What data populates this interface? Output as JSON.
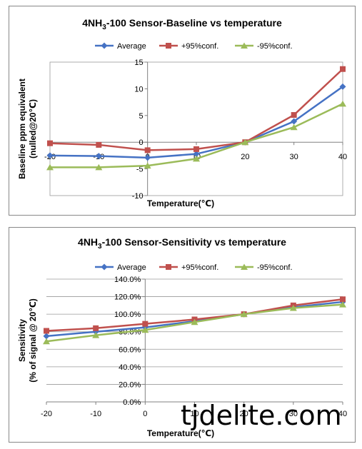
{
  "chart_data": [
    {
      "type": "line",
      "title_prefix": "4NH",
      "title_sub": "3",
      "title_suffix": "-100 Sensor-Baseline vs temperature",
      "xlabel": "Temperature(℃)",
      "ylabel_line1": "Baseline ppm equivalent",
      "ylabel_line2": "(nulled@20℃)",
      "x": [
        -20,
        -10,
        0,
        10,
        20,
        30,
        40
      ],
      "xlim": [
        -20,
        40
      ],
      "ylim": [
        -10,
        15
      ],
      "yticks": [
        -10,
        -5,
        0,
        5,
        10,
        15
      ],
      "ytick_labels": [
        "-10",
        "-5",
        "0",
        "5",
        "10",
        "15"
      ],
      "xtick_labels": [
        "-20",
        "-10",
        "0",
        "10",
        "20",
        "30",
        "40"
      ],
      "grid": false,
      "legend": "top",
      "series": [
        {
          "name": "Average",
          "color": "#4572c4",
          "marker": "diamond",
          "values": [
            -2.5,
            -2.6,
            -2.9,
            -2.2,
            0,
            3.9,
            10.4
          ]
        },
        {
          "name": "+95%conf.",
          "color": "#c0504d",
          "marker": "square",
          "values": [
            -0.2,
            -0.5,
            -1.5,
            -1.3,
            0,
            5.1,
            13.7
          ]
        },
        {
          "name": "-95%conf.",
          "color": "#9bbb59",
          "marker": "triangle",
          "values": [
            -4.7,
            -4.7,
            -4.4,
            -3.1,
            0,
            2.8,
            7.2
          ]
        }
      ]
    },
    {
      "type": "line",
      "title_prefix": "4NH",
      "title_sub": "3",
      "title_suffix": "-100 Sensor-Sensitivity vs temperature",
      "xlabel": "Temperature(℃)",
      "ylabel_line1": "Sensitivity",
      "ylabel_line2": "(% of signal @ 20℃)",
      "x": [
        -20,
        -10,
        0,
        10,
        20,
        30,
        40
      ],
      "xlim": [
        -20,
        40
      ],
      "ylim": [
        0,
        140
      ],
      "yticks": [
        0,
        20,
        40,
        60,
        80,
        100,
        120,
        140
      ],
      "ytick_labels": [
        "0.0%",
        "20.0%",
        "40.0%",
        "60.0%",
        "80.0%",
        "100.0%",
        "120.0%",
        "140.0%"
      ],
      "xtick_labels": [
        "-20",
        "-10",
        "0",
        "10",
        "20",
        "30",
        "40"
      ],
      "grid": true,
      "legend": "top",
      "series": [
        {
          "name": "Average",
          "color": "#4572c4",
          "marker": "diamond",
          "values": [
            75,
            80,
            85,
            92,
            100,
            108,
            114
          ]
        },
        {
          "name": "+95%conf.",
          "color": "#c0504d",
          "marker": "square",
          "values": [
            81,
            84,
            89,
            94,
            100,
            110,
            117
          ]
        },
        {
          "name": "-95%conf.",
          "color": "#9bbb59",
          "marker": "triangle",
          "values": [
            69,
            76,
            82,
            91,
            100,
            107,
            111
          ]
        }
      ]
    }
  ],
  "watermark": "tjdelite.com"
}
